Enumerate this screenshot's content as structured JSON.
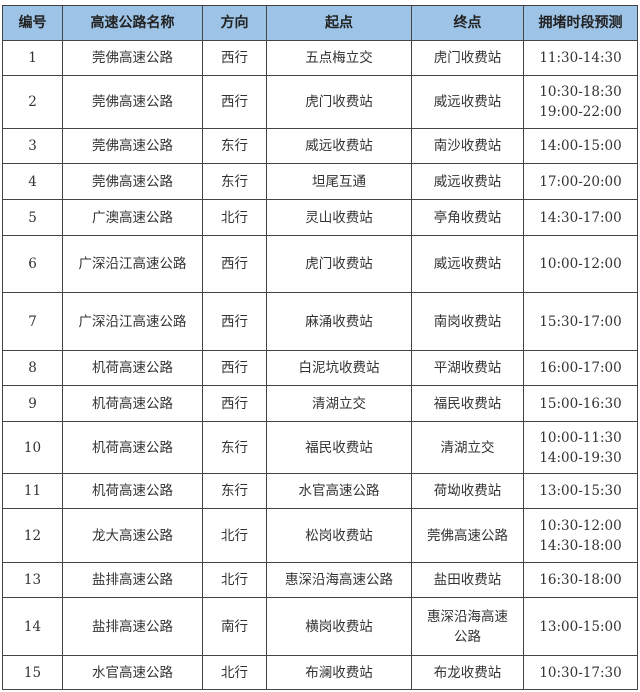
{
  "table": {
    "headers": [
      "编号",
      "高速公路名称",
      "方向",
      "起点",
      "终点",
      "拥堵时段预测"
    ],
    "rows": [
      [
        "1",
        "莞佛高速公路",
        "西行",
        "五点梅立交",
        "虎门收费站",
        "11:30-14:30"
      ],
      [
        "2",
        "莞佛高速公路",
        "西行",
        "虎门收费站",
        "威远收费站",
        "10:30-18:30\n19:00-22:00"
      ],
      [
        "3",
        "莞佛高速公路",
        "东行",
        "威远收费站",
        "南沙收费站",
        "14:00-15:00"
      ],
      [
        "4",
        "莞佛高速公路",
        "东行",
        "坦尾互通",
        "威远收费站",
        "17:00-20:00"
      ],
      [
        "5",
        "广澳高速公路",
        "北行",
        "灵山收费站",
        "亭角收费站",
        "14:30-17:00"
      ],
      [
        "6",
        "广深沿江高速公路",
        "西行",
        "虎门收费站",
        "威远收费站",
        "10:00-12:00"
      ],
      [
        "7",
        "广深沿江高速公路",
        "西行",
        "麻涌收费站",
        "南岗收费站",
        "15:30-17:00"
      ],
      [
        "8",
        "机荷高速公路",
        "西行",
        "白泥坑收费站",
        "平湖收费站",
        "16:00-17:00"
      ],
      [
        "9",
        "机荷高速公路",
        "西行",
        "清湖立交",
        "福民收费站",
        "15:00-16:30"
      ],
      [
        "10",
        "机荷高速公路",
        "东行",
        "福民收费站",
        "清湖立交",
        "10:00-11:30\n14:00-19:30"
      ],
      [
        "11",
        "机荷高速公路",
        "东行",
        "水官高速公路",
        "荷坳收费站",
        "13:00-15:30"
      ],
      [
        "12",
        "龙大高速公路",
        "北行",
        "松岗收费站",
        "莞佛高速公路",
        "10:30-12:00\n14:30-18:00"
      ],
      [
        "13",
        "盐排高速公路",
        "北行",
        "惠深沿海高速公路",
        "盐田收费站",
        "16:30-18:00"
      ],
      [
        "14",
        "盐排高速公路",
        "南行",
        "横岗收费站",
        "惠深沿海高速\n公路",
        "13:00-15:00"
      ],
      [
        "15",
        "水官高速公路",
        "北行",
        "布澜收费站",
        "布龙收费站",
        "10:30-17:30"
      ]
    ]
  },
  "colors": {
    "header_bg": "#9dc3e6",
    "border": "#444444"
  }
}
